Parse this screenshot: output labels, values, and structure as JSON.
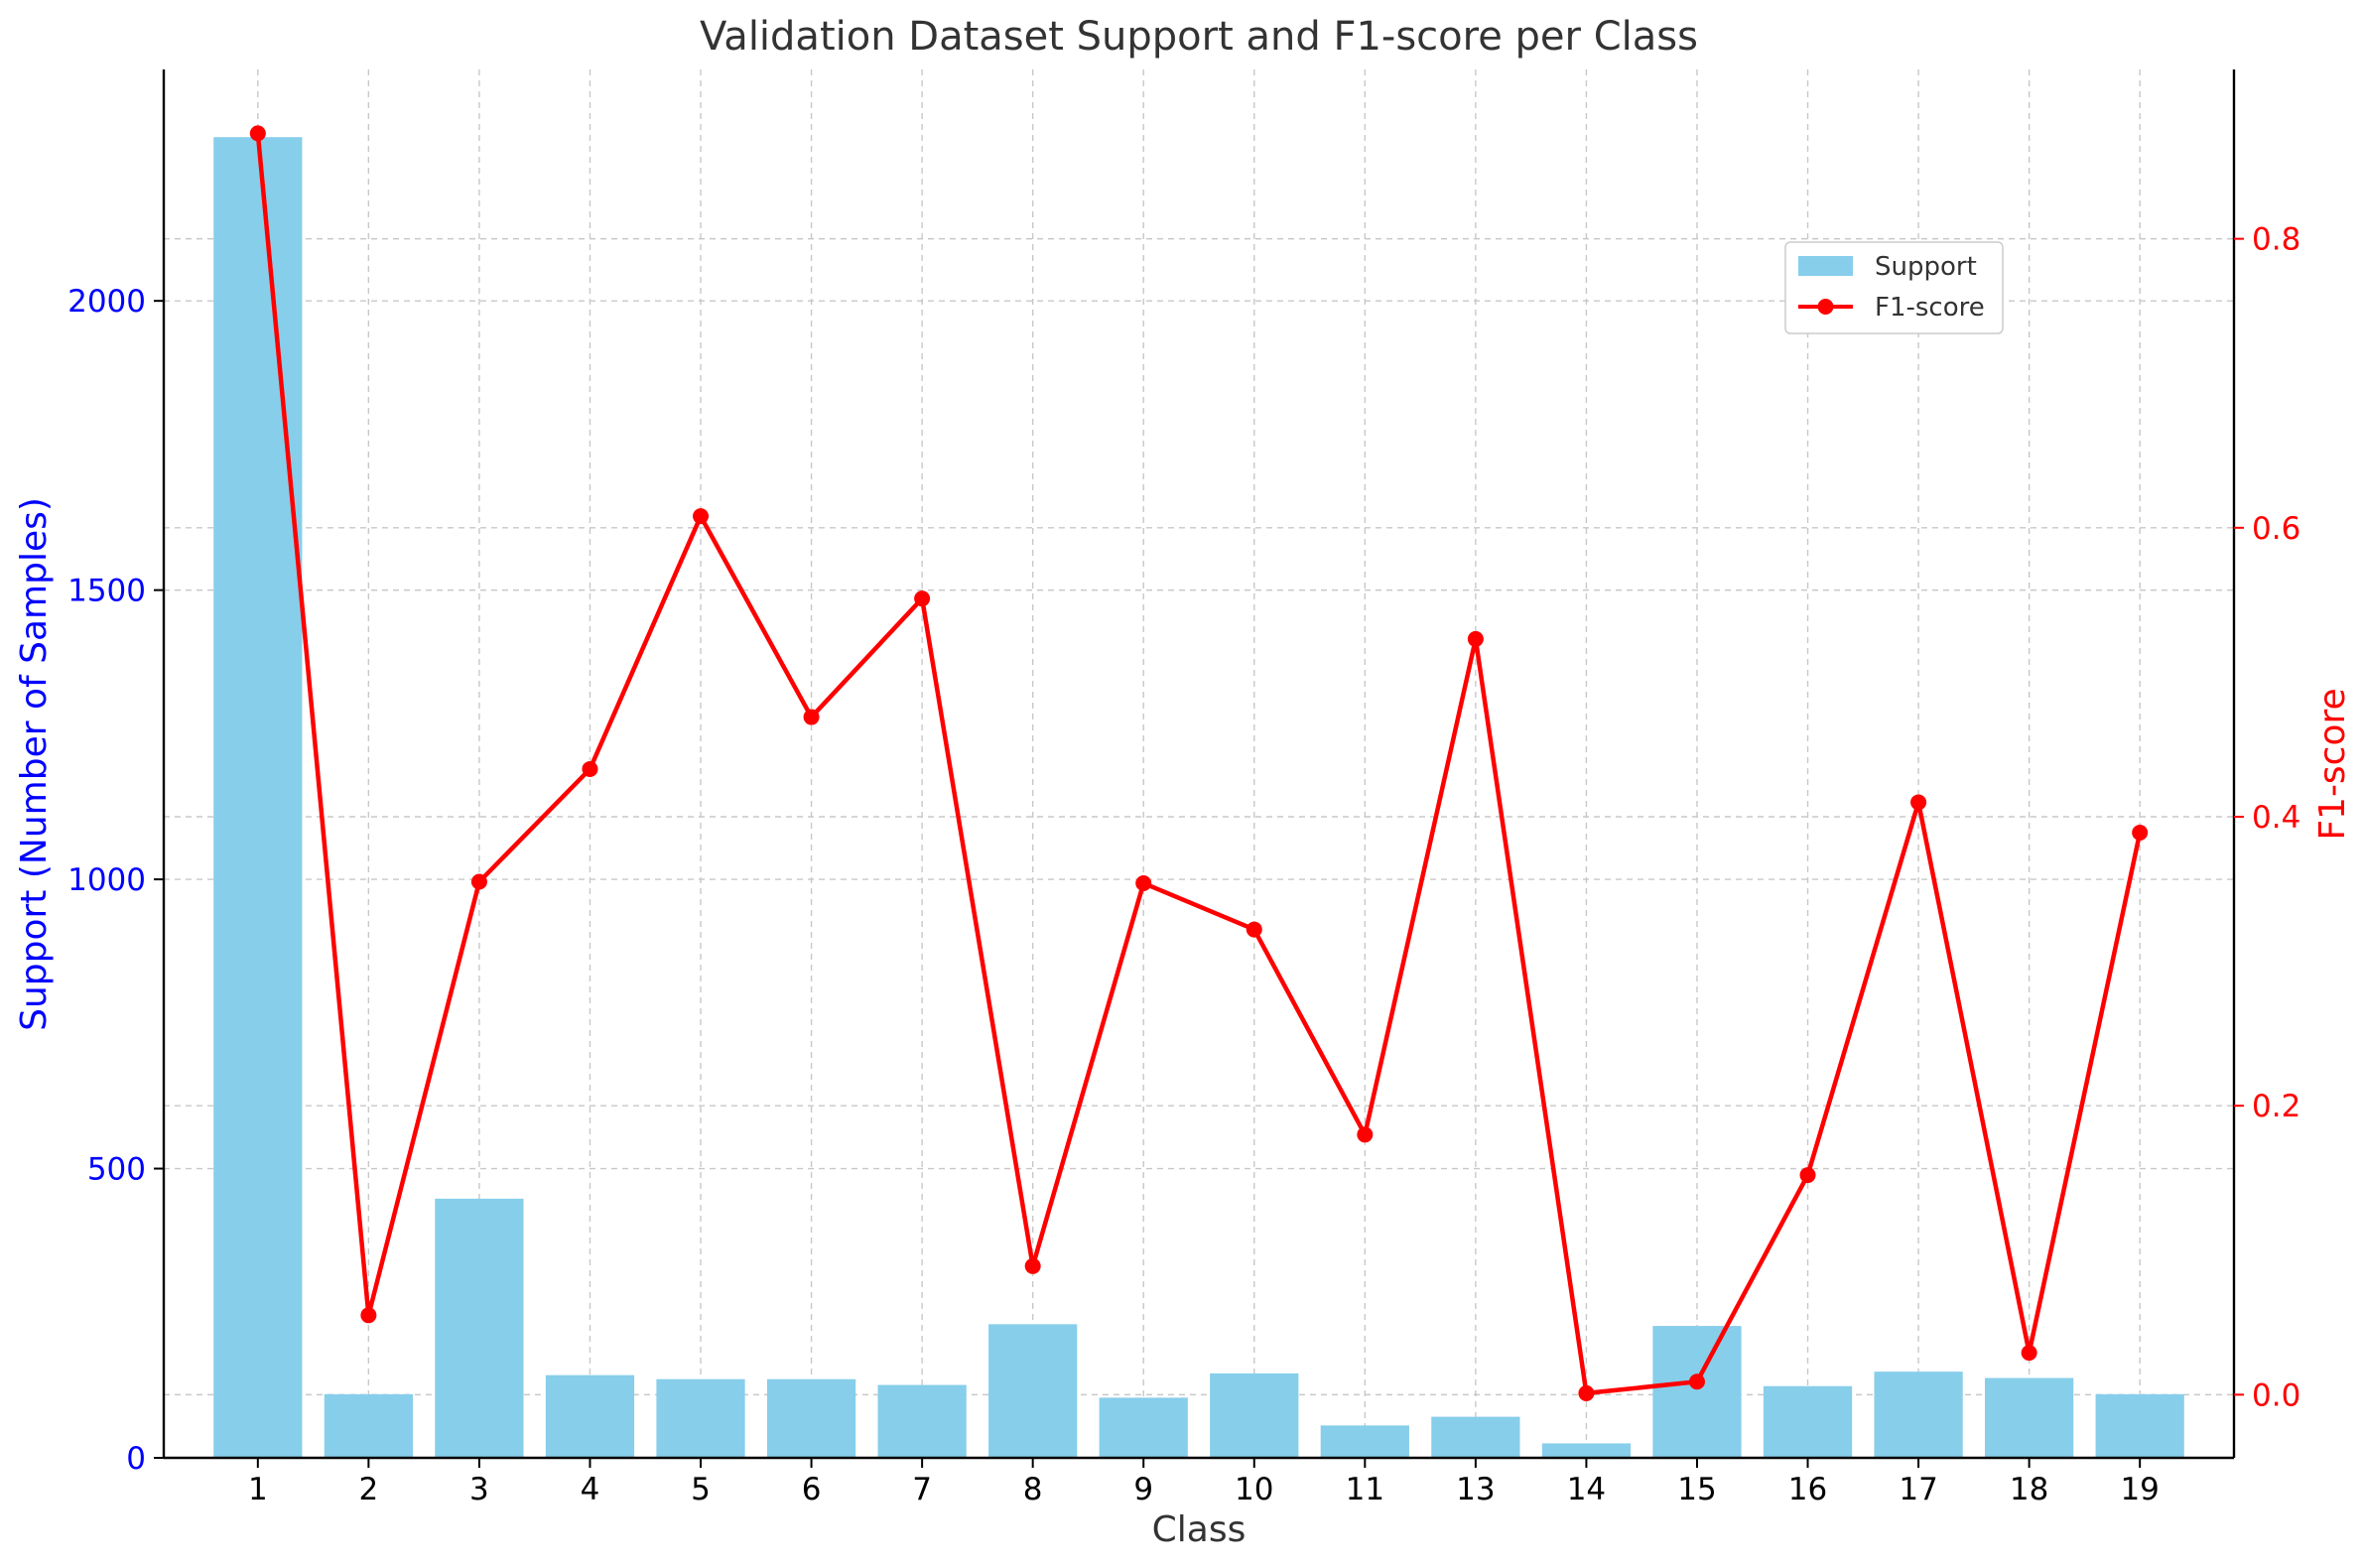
{
  "chart_data": {
    "type": "bar+line",
    "title": "Validation Dataset Support and F1-score per Class",
    "xlabel": "Class",
    "ylabel_left": "Support (Number of Samples)",
    "ylabel_right": "F1-score",
    "categories": [
      "1",
      "2",
      "3",
      "4",
      "5",
      "6",
      "7",
      "8",
      "9",
      "10",
      "11",
      "13",
      "14",
      "15",
      "16",
      "17",
      "18",
      "19"
    ],
    "series": [
      {
        "name": "Support",
        "type": "bar",
        "axis": "left",
        "color": "#87ceeb",
        "values": [
          2283,
          110,
          448,
          143,
          136,
          136,
          126,
          231,
          104,
          146,
          56,
          71,
          25,
          228,
          124,
          149,
          138,
          110
        ]
      },
      {
        "name": "F1-score",
        "type": "line",
        "axis": "right",
        "color": "#ff0000",
        "values": [
          0.873,
          0.055,
          0.355,
          0.433,
          0.608,
          0.469,
          0.551,
          0.089,
          0.354,
          0.322,
          0.18,
          0.523,
          0.001,
          0.009,
          0.152,
          0.41,
          0.029,
          0.389
        ]
      }
    ],
    "ylim_left": [
      0,
      2400
    ],
    "ylim_right": [
      -0.0437,
      0.9172
    ],
    "yticks_left": [
      "0",
      "500",
      "1000",
      "1500",
      "2000"
    ],
    "yticks_right": [
      "0.0",
      "0.2",
      "0.4",
      "0.6",
      "0.8"
    ],
    "grid": true,
    "legend_position": "upper-right",
    "colors": {
      "left_axis": "#0000ff",
      "right_axis": "#ff0000",
      "bar": "#87ceeb",
      "line": "#ff0000"
    }
  }
}
